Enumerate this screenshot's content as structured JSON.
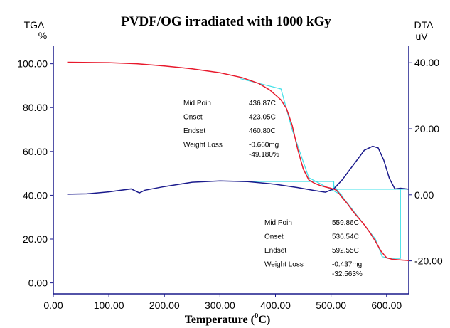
{
  "chart_data": {
    "type": "line",
    "title": "PVDF/OG irradiated with 1000 kGy",
    "xlabel": "Temperature (",
    "xlabel_sup": "0",
    "xlabel_unit": "C)",
    "y_left_label": "TGA",
    "y_left_unit": "%",
    "y_right_label": "DTA",
    "y_right_unit": "uV",
    "xlim": [
      0,
      640
    ],
    "ylim_left": [
      -5,
      108
    ],
    "ylim_right": [
      -30,
      45
    ],
    "x_ticks": [
      "0.00",
      "100.00",
      "200.00",
      "300.00",
      "400.00",
      "500.00",
      "600.00"
    ],
    "x_tick_values": [
      0,
      100,
      200,
      300,
      400,
      500,
      600
    ],
    "y_left_ticks": [
      "0.00",
      "20.00",
      "40.00",
      "60.00",
      "80.00",
      "100.00"
    ],
    "y_left_tick_values": [
      0,
      20,
      40,
      60,
      80,
      100
    ],
    "y_right_ticks": [
      "-20.00",
      "0.00",
      "20.00",
      "40.00"
    ],
    "y_right_tick_values": [
      -20,
      0,
      20,
      40
    ],
    "colors": {
      "tga": "#e8192c",
      "dta": "#1a1a8c",
      "analysis": "#3fe0e8",
      "axis": "#1a1a8c"
    },
    "series": [
      {
        "axis": "left",
        "x": [
          25,
          100,
          150,
          200,
          250,
          300,
          340,
          370,
          390,
          410,
          420,
          430,
          440,
          450,
          460,
          470,
          480,
          490,
          500,
          510,
          520,
          530,
          540,
          550,
          560,
          570,
          580,
          590,
          600,
          610,
          620,
          630,
          640
        ],
        "y": [
          100.7,
          100.5,
          100.0,
          99.0,
          97.7,
          95.9,
          93.7,
          91.0,
          88.0,
          83.5,
          79.5,
          72.0,
          61.0,
          52.0,
          47.0,
          45.5,
          44.5,
          43.8,
          43.2,
          42.3,
          39.0,
          36.0,
          32.5,
          29.5,
          26.5,
          23.0,
          19.0,
          14.5,
          11.5,
          10.8,
          10.6,
          10.4,
          10.2
        ]
      },
      {
        "axis": "right",
        "x": [
          25,
          60,
          100,
          140,
          150,
          155,
          165,
          200,
          250,
          300,
          350,
          400,
          440,
          470,
          490,
          505,
          520,
          540,
          560,
          575,
          585,
          595,
          605,
          615,
          625,
          640
        ],
        "y": [
          0.2,
          0.3,
          0.9,
          1.8,
          1.0,
          0.6,
          1.4,
          2.5,
          3.8,
          4.2,
          4.0,
          3.2,
          2.2,
          1.3,
          0.8,
          1.8,
          4.5,
          9.0,
          13.5,
          14.7,
          14.2,
          10.5,
          5.0,
          1.8,
          2.0,
          1.7
        ]
      }
    ],
    "annotations": [
      {
        "onset_x": 423.05,
        "endset_x": 460.8,
        "rows": [
          {
            "label": "Mid Poin",
            "value": "436.87C"
          },
          {
            "label": "Onset",
            "value": "423.05C"
          },
          {
            "label": "Endset",
            "value": "460.80C"
          },
          {
            "label": "Weight Loss",
            "value": "-0.660mg"
          },
          {
            "label": "",
            "value": "-49.180%"
          }
        ]
      },
      {
        "onset_x": 536.54,
        "endset_x": 592.55,
        "rows": [
          {
            "label": "Mid Poin",
            "value": "559.86C"
          },
          {
            "label": "Onset",
            "value": "536.54C"
          },
          {
            "label": "Endset",
            "value": "592.55C"
          },
          {
            "label": "Weight Loss",
            "value": "-0.437mg"
          },
          {
            "label": "",
            "value": "-32.563%"
          }
        ]
      }
    ]
  }
}
